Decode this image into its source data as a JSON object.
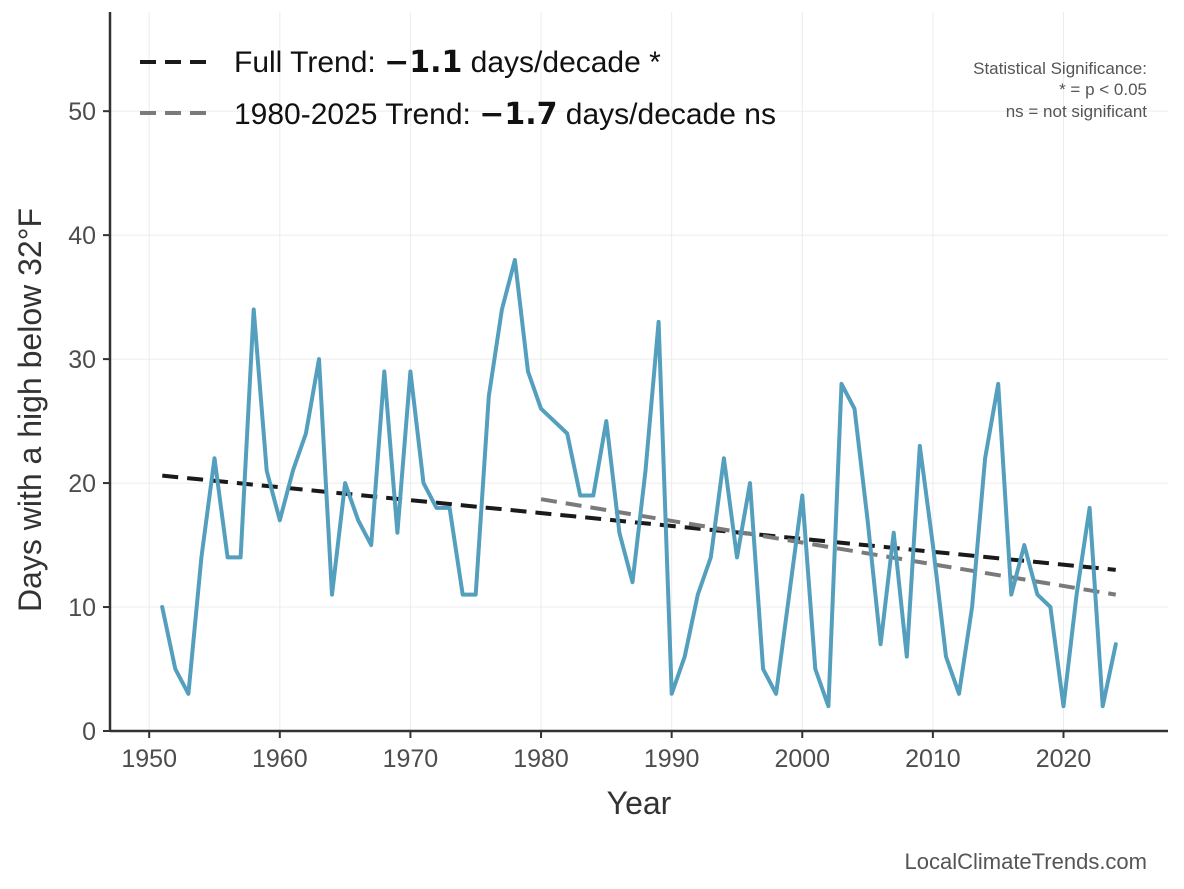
{
  "chart_data": {
    "type": "line",
    "xlabel": "Year",
    "ylabel": "Days with a high below 32°F",
    "xlim": [
      1947,
      2028
    ],
    "ylim": [
      0,
      58
    ],
    "x_ticks": [
      1950,
      1960,
      1970,
      1980,
      1990,
      2000,
      2010,
      2020
    ],
    "y_ticks": [
      0,
      10,
      20,
      30,
      40,
      50
    ],
    "grid": true,
    "legend_position": "top-left",
    "series": [
      {
        "color": "#559fbe",
        "x": [
          1951,
          1952,
          1953,
          1954,
          1955,
          1956,
          1957,
          1958,
          1959,
          1960,
          1961,
          1962,
          1963,
          1964,
          1965,
          1966,
          1967,
          1968,
          1969,
          1970,
          1971,
          1972,
          1973,
          1974,
          1975,
          1976,
          1977,
          1978,
          1979,
          1980,
          1981,
          1982,
          1983,
          1984,
          1985,
          1986,
          1987,
          1988,
          1989,
          1990,
          1991,
          1992,
          1993,
          1994,
          1995,
          1996,
          1997,
          1998,
          1999,
          2000,
          2001,
          2002,
          2003,
          2004,
          2005,
          2006,
          2007,
          2008,
          2009,
          2010,
          2011,
          2012,
          2013,
          2014,
          2015,
          2016,
          2017,
          2018,
          2019,
          2020,
          2021,
          2022,
          2023,
          2024
        ],
        "values": [
          10,
          5,
          3,
          14,
          22,
          14,
          14,
          34,
          21,
          17,
          21,
          24,
          30,
          11,
          20,
          17,
          15,
          29,
          16,
          29,
          20,
          18,
          18,
          11,
          11,
          27,
          34,
          38,
          29,
          26,
          25,
          24,
          19,
          19,
          25,
          16,
          12,
          21,
          33,
          3,
          6,
          11,
          14,
          22,
          14,
          20,
          5,
          3,
          11,
          19,
          5,
          2,
          28,
          26,
          17,
          7,
          16,
          6,
          23,
          15,
          6,
          3,
          10,
          22,
          28,
          11,
          15,
          11,
          10,
          2,
          11,
          18,
          2,
          7
        ]
      }
    ],
    "trends": [
      {
        "label_prefix": "Full Trend: ",
        "label_value": "−1.1",
        "label_suffix": " days/decade *",
        "color": "#1a1a1a",
        "x": [
          1951,
          2024
        ],
        "y": [
          20.6,
          13.0
        ]
      },
      {
        "label_prefix": "1980-2025 Trend: ",
        "label_value": "−1.7",
        "label_suffix": " days/decade ns",
        "color": "#7a7a7a",
        "x": [
          1980,
          2024
        ],
        "y": [
          18.7,
          11.0
        ]
      }
    ],
    "annotation_lines": [
      "Statistical Significance:",
      "* = p < 0.05",
      "ns = not significant"
    ],
    "footer": "LocalClimateTrends.com"
  }
}
